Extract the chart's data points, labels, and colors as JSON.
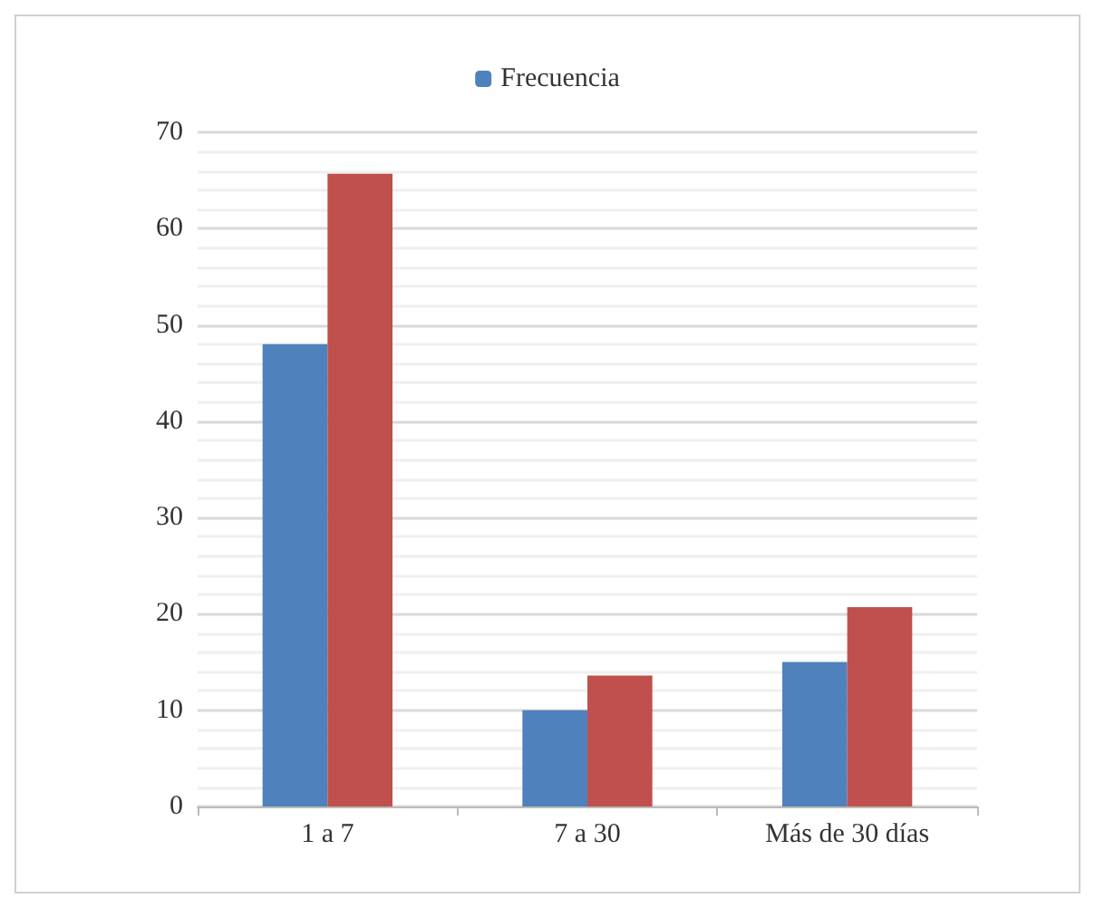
{
  "chart_data": {
    "type": "bar",
    "categories": [
      "1 a 7",
      "7 a 30",
      "Más de 30 días"
    ],
    "series": [
      {
        "name": "Frecuencia",
        "color": "#4f81bd",
        "values": [
          48,
          10,
          15
        ]
      },
      {
        "color": "#c0504d",
        "values": [
          65.7,
          13.6,
          20.7
        ]
      }
    ],
    "ylim": [
      0,
      70
    ],
    "yticks": [
      0,
      10,
      20,
      30,
      40,
      50,
      60,
      70
    ],
    "grid": "y",
    "legend": "top"
  }
}
